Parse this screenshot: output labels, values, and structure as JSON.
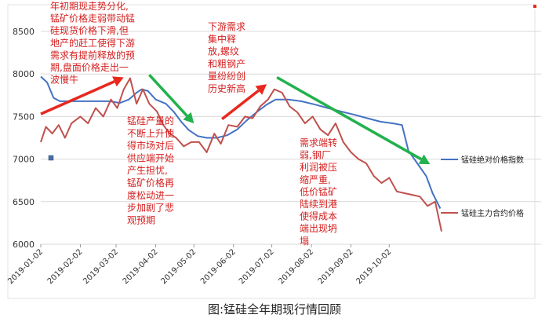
{
  "chart_data": {
    "type": "line",
    "caption": "图:锰硅全年期现行情回顾",
    "ylim": [
      6000,
      8500
    ],
    "yticks": [
      6000,
      6500,
      7000,
      7500,
      8000,
      8500
    ],
    "xticks": [
      "2019-01-02",
      "2019-02-02",
      "2019-03-02",
      "2019-04-02",
      "2019-05-02",
      "2019-06-02",
      "2019-07-02",
      "2019-08-02",
      "2019-09-02",
      "2019-10-02"
    ],
    "grid": true,
    "legend_position": "right",
    "series": [
      {
        "name": "锰硅绝对价格指数",
        "color": "#4472c4",
        "points": [
          [
            "2019-01-02",
            7970
          ],
          [
            "2019-01-07",
            7900
          ],
          [
            "2019-01-12",
            7720
          ],
          [
            "2019-01-17",
            7680
          ],
          [
            "2019-01-25",
            7680
          ],
          [
            "2019-02-05",
            7680
          ],
          [
            "2019-02-15",
            7680
          ],
          [
            "2019-02-25",
            7680
          ],
          [
            "2019-03-05",
            7660
          ],
          [
            "2019-03-12",
            7700
          ],
          [
            "2019-03-18",
            7780
          ],
          [
            "2019-03-22",
            7820
          ],
          [
            "2019-03-27",
            7800
          ],
          [
            "2019-04-02",
            7700
          ],
          [
            "2019-04-10",
            7650
          ],
          [
            "2019-04-16",
            7560
          ],
          [
            "2019-04-22",
            7440
          ],
          [
            "2019-04-28",
            7340
          ],
          [
            "2019-05-05",
            7270
          ],
          [
            "2019-05-12",
            7250
          ],
          [
            "2019-05-20",
            7250
          ],
          [
            "2019-05-28",
            7280
          ],
          [
            "2019-06-05",
            7350
          ],
          [
            "2019-06-12",
            7450
          ],
          [
            "2019-06-20",
            7550
          ],
          [
            "2019-06-28",
            7640
          ],
          [
            "2019-07-05",
            7700
          ],
          [
            "2019-07-15",
            7700
          ],
          [
            "2019-07-25",
            7680
          ],
          [
            "2019-08-05",
            7640
          ],
          [
            "2019-08-15",
            7600
          ],
          [
            "2019-08-25",
            7560
          ],
          [
            "2019-09-05",
            7520
          ],
          [
            "2019-09-15",
            7480
          ],
          [
            "2019-09-25",
            7440
          ],
          [
            "2019-10-05",
            7420
          ],
          [
            "2019-10-12",
            7400
          ],
          [
            "2019-10-17",
            7100
          ],
          [
            "2019-10-24",
            6950
          ],
          [
            "2019-10-31",
            6800
          ],
          [
            "2019-11-05",
            6600
          ],
          [
            "2019-11-11",
            6420
          ]
        ]
      },
      {
        "name": "锰硅主力合约价格",
        "color": "#c0504d",
        "points": [
          [
            "2019-01-02",
            7200
          ],
          [
            "2019-01-06",
            7380
          ],
          [
            "2019-01-11",
            7300
          ],
          [
            "2019-01-16",
            7400
          ],
          [
            "2019-01-21",
            7250
          ],
          [
            "2019-01-26",
            7420
          ],
          [
            "2019-02-02",
            7500
          ],
          [
            "2019-02-08",
            7420
          ],
          [
            "2019-02-14",
            7600
          ],
          [
            "2019-02-20",
            7500
          ],
          [
            "2019-02-26",
            7700
          ],
          [
            "2019-03-03",
            7600
          ],
          [
            "2019-03-08",
            7820
          ],
          [
            "2019-03-13",
            7950
          ],
          [
            "2019-03-18",
            7650
          ],
          [
            "2019-03-23",
            7820
          ],
          [
            "2019-03-28",
            7650
          ],
          [
            "2019-04-03",
            7560
          ],
          [
            "2019-04-08",
            7400
          ],
          [
            "2019-04-13",
            7300
          ],
          [
            "2019-04-18",
            7250
          ],
          [
            "2019-04-24",
            7150
          ],
          [
            "2019-04-30",
            7200
          ],
          [
            "2019-05-06",
            7200
          ],
          [
            "2019-05-12",
            7080
          ],
          [
            "2019-05-18",
            7300
          ],
          [
            "2019-05-23",
            7180
          ],
          [
            "2019-05-29",
            7400
          ],
          [
            "2019-06-05",
            7380
          ],
          [
            "2019-06-11",
            7500
          ],
          [
            "2019-06-17",
            7480
          ],
          [
            "2019-06-23",
            7620
          ],
          [
            "2019-06-29",
            7700
          ],
          [
            "2019-07-04",
            7820
          ],
          [
            "2019-07-10",
            7780
          ],
          [
            "2019-07-16",
            7620
          ],
          [
            "2019-07-22",
            7550
          ],
          [
            "2019-07-28",
            7420
          ],
          [
            "2019-08-03",
            7500
          ],
          [
            "2019-08-09",
            7350
          ],
          [
            "2019-08-15",
            7280
          ],
          [
            "2019-08-21",
            7420
          ],
          [
            "2019-08-27",
            7200
          ],
          [
            "2019-09-02",
            7080
          ],
          [
            "2019-09-08",
            7000
          ],
          [
            "2019-09-14",
            6950
          ],
          [
            "2019-09-20",
            6800
          ],
          [
            "2019-09-26",
            6720
          ],
          [
            "2019-10-02",
            6780
          ],
          [
            "2019-10-08",
            6620
          ],
          [
            "2019-10-14",
            6600
          ],
          [
            "2019-10-20",
            6580
          ],
          [
            "2019-10-26",
            6560
          ],
          [
            "2019-11-01",
            6450
          ],
          [
            "2019-11-07",
            6500
          ],
          [
            "2019-11-12",
            6150
          ]
        ]
      }
    ],
    "arrows": [
      {
        "color": "#e8281e",
        "from": [
          "2019-01-02",
          7530
        ],
        "to": [
          "2019-03-08",
          7960
        ]
      },
      {
        "color": "#22b14c",
        "from": [
          "2019-03-28",
          7990
        ],
        "to": [
          "2019-05-02",
          7420
        ]
      },
      {
        "color": "#e8281e",
        "from": [
          "2019-05-24",
          7470
        ],
        "to": [
          "2019-06-28",
          7880
        ]
      },
      {
        "color": "#22b14c",
        "from": [
          "2019-07-06",
          7960
        ],
        "to": [
          "2019-11-03",
          6940
        ]
      }
    ],
    "annotations": [
      {
        "id": "a1",
        "lines": [
          "年初期现走势分化,",
          "锰矿价格走弱带动锰",
          "硅现货价格下滑,但",
          "地产的赶工使得下游",
          "需求有提前释放的预",
          "期,盘面价格走出一",
          "波慢牛"
        ]
      },
      {
        "id": "a2",
        "lines": [
          "锰硅产量的",
          "不断上升使",
          "得市场对后",
          "供应端开始",
          "产生担忧,",
          "锰矿价格再",
          "度松动进一",
          "步加剧了悲",
          "观预期"
        ]
      },
      {
        "id": "a3",
        "lines": [
          "下游需求",
          "集中释",
          "放,螺纹",
          "和粗钢产",
          "量纷纷创",
          "历史新高"
        ]
      },
      {
        "id": "a4",
        "lines": [
          "需求端转",
          "弱,钢厂",
          "利润被压",
          "缩严重,",
          "低价锰矿",
          "陆续到港",
          "使得成本",
          "端出现坍",
          "塌"
        ]
      }
    ]
  }
}
